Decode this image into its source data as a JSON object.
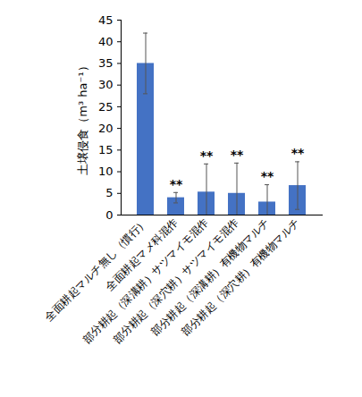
{
  "chart_data": {
    "type": "bar",
    "y_label": "土壌侵食（m³ ha⁻¹）",
    "categories": [
      "全面耕起マルチ無し（慣行）",
      "全面耕起マメ科混作",
      "部分耕起（深溝耕）サツマイモ混作",
      "部分耕起（深穴耕）サツマイモ混作",
      "部分耕起（深溝耕）有機物マルチ",
      "部分耕起（深穴耕）有機物マルチ"
    ],
    "values": [
      35,
      4,
      5.3,
      5,
      3,
      6.8
    ],
    "errors": [
      7,
      1.2,
      6.5,
      7,
      4,
      5.5
    ],
    "significance": [
      null,
      "**",
      "**",
      "**",
      "**",
      "**"
    ],
    "color": "#4472c4",
    "ylim": [
      0,
      45
    ],
    "yticks": [
      0,
      5,
      10,
      15,
      20,
      25,
      30,
      35,
      40,
      45
    ],
    "grid": false
  }
}
